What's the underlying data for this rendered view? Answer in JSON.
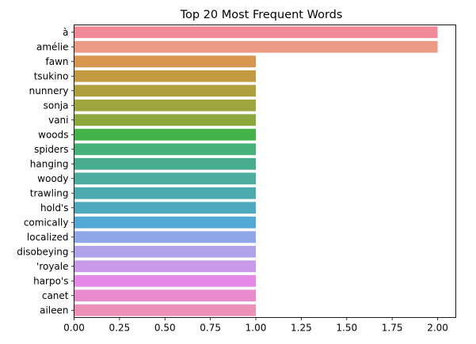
{
  "chart_data": {
    "type": "bar",
    "orientation": "horizontal",
    "title": "Top 20 Most Frequent Words",
    "xlabel": "",
    "ylabel": "",
    "xlim": [
      0,
      2.1
    ],
    "xticks": [
      "0.00",
      "0.25",
      "0.50",
      "0.75",
      "1.00",
      "1.25",
      "1.50",
      "1.75",
      "2.00"
    ],
    "grid": false,
    "legend": "none",
    "categories": [
      "à",
      "amélie",
      "fawn",
      "tsukino",
      "nunnery",
      "sonja",
      "vani",
      "woods",
      "spiders",
      "hanging",
      "woody",
      "trawling",
      "hold's",
      "comically",
      "localized",
      "disobeying",
      "'royale",
      "harpo's",
      "canet",
      "aileen"
    ],
    "values": [
      2,
      2,
      1,
      1,
      1,
      1,
      1,
      1,
      1,
      1,
      1,
      1,
      1,
      1,
      1,
      1,
      1,
      1,
      1,
      1
    ],
    "colors": [
      "#f08a99",
      "#eb9a85",
      "#d8964e",
      "#c29a42",
      "#b09f3f",
      "#a1a53f",
      "#8ca93f",
      "#43b349",
      "#46b17b",
      "#48ae8f",
      "#4aad9e",
      "#4babaf",
      "#4daabf",
      "#52a9d5",
      "#8ea7e7",
      "#b0a3ec",
      "#c99ae9",
      "#e48ae6",
      "#ea8bce",
      "#ed90b5"
    ]
  }
}
